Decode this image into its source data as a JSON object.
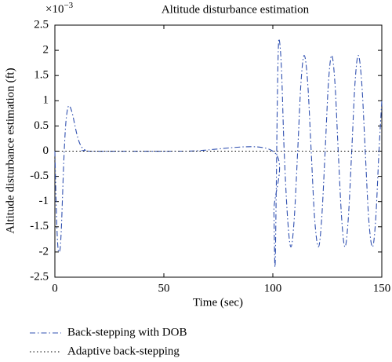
{
  "chart_data": {
    "type": "line",
    "title": "Altitude disturbance estimation",
    "x_label": "Time (sec)",
    "y_label": "Altitude disturbance estimation (ft)",
    "y_multiplier": {
      "base": "×10",
      "exponent": "−3"
    },
    "xlim": [
      0,
      150
    ],
    "xticks": [
      0,
      50,
      100,
      150
    ],
    "ylim": [
      -2.5,
      2.5
    ],
    "yticks": [
      -2.5,
      -2,
      -1.5,
      -1,
      -0.5,
      0,
      0.5,
      1,
      1.5,
      2,
      2.5
    ],
    "legend": "below",
    "series": [
      {
        "name": "Back-stepping with DOB",
        "color": "#3050b0",
        "line_style": "dashdot",
        "x": [
          0,
          0.5,
          1,
          1.5,
          2,
          2.5,
          3,
          3.5,
          4,
          4.5,
          5,
          5.5,
          6,
          6.5,
          7,
          8,
          9,
          10,
          11,
          12,
          13,
          14,
          16,
          60,
          100,
          100.5,
          101,
          101.5,
          102,
          102.5,
          103,
          104,
          105.2,
          106.8,
          108.3,
          109.8,
          111.4,
          112.9,
          114.4,
          116,
          117.6,
          119.2,
          120.9,
          122.4,
          124,
          125.5,
          127,
          128.5,
          130,
          131.6,
          133.1,
          134.6,
          136.2,
          137.7,
          139.2,
          140.8,
          142.4,
          144,
          145.7,
          147.2,
          148.7,
          150
        ],
        "values": [
          0,
          -0.9,
          -1.6,
          -1.95,
          -2.0,
          -1.9,
          -1.5,
          -0.9,
          -0.3,
          0.2,
          0.55,
          0.75,
          0.87,
          0.9,
          0.88,
          0.75,
          0.55,
          0.35,
          0.2,
          0.1,
          0.05,
          0.02,
          0,
          0,
          0,
          -1.2,
          -2.3,
          -1.0,
          0.8,
          2.0,
          2.2,
          1.6,
          0,
          -1.35,
          -1.9,
          -1.35,
          0,
          1.35,
          1.9,
          1.35,
          0,
          -1.35,
          -1.9,
          -1.35,
          0,
          1.35,
          1.9,
          1.35,
          0,
          -1.35,
          -1.9,
          -1.35,
          0,
          1.35,
          1.9,
          1.35,
          0,
          -1.35,
          -1.9,
          -1.35,
          0,
          1.0
        ]
      },
      {
        "name": "Adaptive back-stepping",
        "color": "#000000",
        "line_style": "dotted",
        "x": [
          0,
          150
        ],
        "values": [
          0,
          0
        ]
      }
    ]
  }
}
